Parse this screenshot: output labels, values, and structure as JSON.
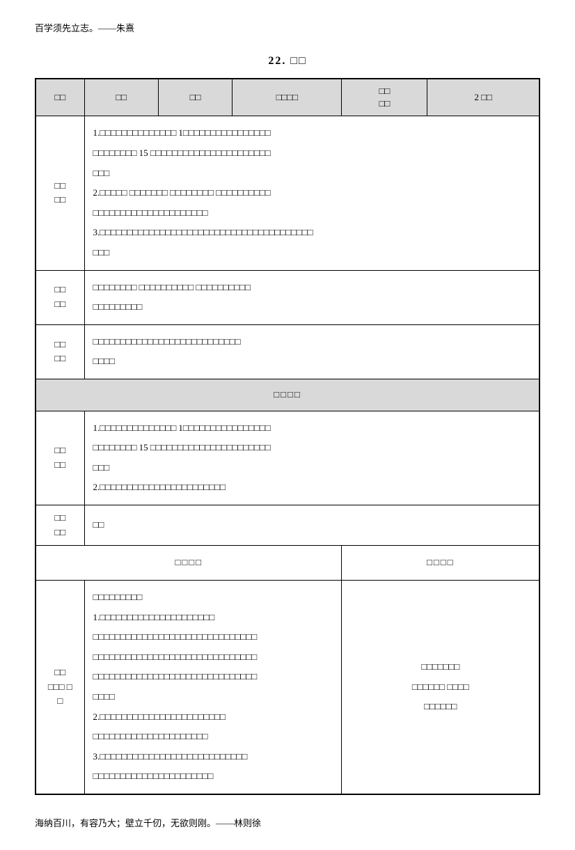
{
  "header_quote": "百学须先立志。——朱熹",
  "title": "22. □□",
  "table": {
    "headers": {
      "col1": "□□",
      "col2": "□□",
      "col3": "□□",
      "col4": "□□□□",
      "col5_line1": "□□",
      "col5_line2": "□□",
      "col6": "2 □□"
    },
    "row1": {
      "label": "□□\n□□",
      "content": "1.□□□□□□□□□□□□□□                          1□□□□□□□□□□□□□□□□\n□□□□□□□□            15 □□□□□□□□□□□□□□□□□□□□□□\n□□□\n2.□□□□□       □□□□□□□         □□□□□□□□           □□□□□□□□□□\n□□□□□□□□□□□□□□□□□□□□□\n3.□□□□□□□□□□□□□□□□□□□□□□□□□□□□□□□□□□□□□□□\n□□□"
    },
    "row2": {
      "label": "□□\n□□",
      "content": "        □□□□□□□□            □□□□□□□□□□                  □□□□□□□□□□\n□□□□□□□□□"
    },
    "row3": {
      "label": "□□\n□□",
      "content": "        □□□□□□□□□□□□□□□□□□□□□□□□□□□\n□□□□"
    },
    "section1_header": "□□□□",
    "row4": {
      "label": "□□\n□□",
      "content": "1.□□□□□□□□□□□□□□                          1□□□□□□□□□□□□□□□□\n□□□□□□□□            15 □□□□□□□□□□□□□□□□□□□□□□\n□□□\n2.□□□□□□□□□□□□□□□□□□□□□□□"
    },
    "row5": {
      "label": "□□\n□□",
      "content": "□□"
    },
    "split": {
      "left": "□□□□",
      "right": "□□□□"
    },
    "row6": {
      "label": "□□\n□□□  □\n□",
      "left_content": "□□□□□□□□□\n1.□□□□□□□□□□□□□□□□□□□□□\n□□□□□□□□□□□□□□□□□□□□□□□□□□□□□□\n□□□□□□□□□□□□□□□□□□□□□□□□□□□□□□\n□□□□□□□□□□□□□□□□□□□□□□□□□□□□□□\n□□□□\n2.□□□□□□□□□□□□□□□□□□□□□□□\n□□□□□□□□□□□□□□□□□□□□□\n3.□□□□□□□□□□□□□□□□□□□□□□□□□□□\n□□□□□□□□□□□□□□□□□□□□□□",
      "right_content": "□□□□□□□\n□□□□□□       □□□□\n□□□□□□"
    }
  },
  "footer_quote": "海纳百川，有容乃大；壁立千仞，无欲则刚。——林则徐"
}
